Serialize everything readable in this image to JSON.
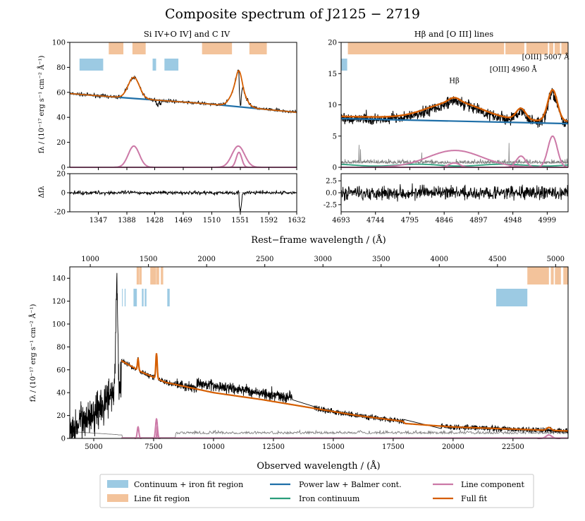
{
  "title": "Composite spectrum of J2125 − 2719",
  "colors": {
    "continuum_region": "#9ccae3",
    "line_region": "#f3c39b",
    "power_law": "#1f6fa8",
    "iron": "#2a9d7a",
    "line_component": "#cc79a7",
    "full_fit": "#d55e00",
    "data": "#000000",
    "error": "#7f7f7f"
  },
  "legend": {
    "continuum_region": "Continuum + iron fit region",
    "line_region": "Line fit region",
    "power_law": "Power law  + Balmer cont.",
    "iron": "Iron continuum",
    "line_component": "Line component",
    "full_fit": "Full fit"
  },
  "labels": {
    "rest_frame_xlabel": "Rest−frame wavelength / (Å)",
    "observed_xlabel": "Observed wavelength / (Å)",
    "flux_ylabel": "fλ / (10⁻¹⁷ erg s⁻¹ cm⁻² Å⁻¹)",
    "resid_ylabel": "Δfλ"
  },
  "chart_data": [
    {
      "id": "civ_panel",
      "type": "line",
      "title": "Si IV+O IV] and C IV",
      "xlim": [
        1306,
        1632
      ],
      "ylim": [
        0,
        100
      ],
      "xticks": [
        1347,
        1388,
        1428,
        1469,
        1510,
        1551,
        1592,
        1632
      ],
      "yticks": [
        0,
        20,
        40,
        60,
        80,
        100
      ],
      "continuum_regions": [
        [
          1320,
          1354
        ],
        [
          1425,
          1430
        ],
        [
          1442,
          1462
        ]
      ],
      "line_regions": [
        [
          1362,
          1383
        ],
        [
          1396,
          1415
        ],
        [
          1496,
          1539
        ],
        [
          1564,
          1589
        ]
      ],
      "power_law": [
        [
          1306,
          59
        ],
        [
          1400,
          55
        ],
        [
          1500,
          51
        ],
        [
          1632,
          44
        ]
      ],
      "line_components": [
        {
          "center": 1398,
          "amp": 17,
          "sigma": 8
        },
        {
          "center": 1548,
          "amp": 17,
          "sigma": 9
        },
        {
          "center": 1549,
          "amp": 12,
          "sigma": 4
        }
      ]
    },
    {
      "id": "civ_resid",
      "type": "line",
      "xlim": [
        1306,
        1632
      ],
      "ylim": [
        -20,
        20
      ],
      "yticks": [
        -20,
        0,
        20
      ]
    },
    {
      "id": "hbeta_panel",
      "type": "line",
      "title": "Hβ and [O III] lines",
      "xlim": [
        4693,
        5030
      ],
      "ylim": [
        0,
        20
      ],
      "xticks": [
        4693,
        4744,
        4795,
        4846,
        4897,
        4948,
        4999
      ],
      "yticks": [
        0,
        5,
        10,
        15,
        20
      ],
      "continuum_regions": [
        [
          4693,
          4702
        ]
      ],
      "line_regions": [
        [
          4703,
          4935
        ],
        [
          4937,
          4965
        ],
        [
          4968,
          5000
        ],
        [
          5002,
          5008
        ],
        [
          5010,
          5018
        ],
        [
          5020,
          5030
        ]
      ],
      "annotations": [
        {
          "text": "Hβ",
          "x": 4861,
          "y": 13.5
        },
        {
          "text": "[OIII] 4960 Å",
          "x": 4959,
          "y": 15.3
        },
        {
          "text": "[OIII] 5007 Å",
          "x": 5007,
          "y": 17.3
        }
      ],
      "power_law": [
        [
          4693,
          7.8
        ],
        [
          5030,
          7.0
        ]
      ],
      "line_components": [
        {
          "center": 4862,
          "amp": 2.7,
          "sigma": 40
        },
        {
          "center": 4861,
          "amp": 0.7,
          "sigma": 8
        },
        {
          "center": 4960,
          "amp": 1.8,
          "sigma": 7
        },
        {
          "center": 5007,
          "amp": 5.0,
          "sigma": 7
        }
      ]
    },
    {
      "id": "hbeta_resid",
      "type": "line",
      "xlim": [
        4693,
        5030
      ],
      "ylim": [
        -4,
        4
      ],
      "yticks": [
        -2.5,
        0.0,
        2.5
      ]
    },
    {
      "id": "full_spectrum",
      "type": "line",
      "xlim": [
        4000,
        24800
      ],
      "ylim": [
        0,
        150
      ],
      "xticks": [
        5000,
        7500,
        10000,
        12500,
        15000,
        17500,
        20000,
        22500
      ],
      "yticks": [
        0,
        20,
        40,
        60,
        80,
        100,
        120,
        140
      ],
      "top_axis": {
        "label": "rest-frame",
        "ticks": [
          1000,
          1500,
          2000,
          2500,
          3000,
          3500,
          4000,
          4500,
          5000
        ]
      },
      "continuum_regions": [
        [
          6180,
          6210
        ],
        [
          6290,
          6330
        ],
        [
          6660,
          6800
        ],
        [
          7010,
          7080
        ],
        [
          7130,
          7200
        ],
        [
          8070,
          8170
        ],
        [
          21800,
          23100
        ]
      ],
      "line_regions": [
        [
          6790,
          6890
        ],
        [
          6900,
          7000
        ],
        [
          7360,
          7600
        ],
        [
          7610,
          7730
        ],
        [
          7800,
          7900
        ],
        [
          23100,
          24000
        ],
        [
          24080,
          24200
        ],
        [
          24250,
          24500
        ],
        [
          24600,
          24800
        ]
      ],
      "fit_curve": [
        [
          6150,
          68
        ],
        [
          7000,
          58
        ],
        [
          8000,
          49
        ],
        [
          10000,
          40
        ],
        [
          12000,
          34
        ],
        [
          14000,
          27
        ],
        [
          16000,
          20
        ],
        [
          17900,
          15
        ],
        [
          18000,
          13
        ],
        [
          20000,
          10
        ],
        [
          22000,
          8.5
        ],
        [
          24800,
          6.5
        ]
      ]
    }
  ]
}
